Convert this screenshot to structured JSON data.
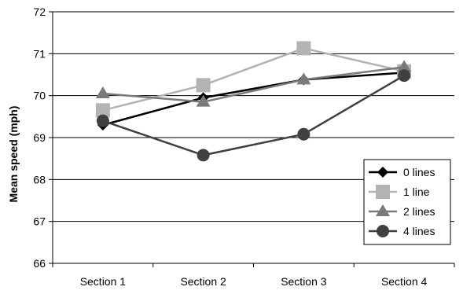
{
  "chart_data": {
    "type": "line",
    "title": "",
    "xlabel": "",
    "ylabel": "Mean speed (mph)",
    "categories": [
      "Section 1",
      "Section 2",
      "Section 3",
      "Section 4"
    ],
    "ylim": [
      66,
      72
    ],
    "yticks": [
      66,
      67,
      68,
      69,
      70,
      71,
      72
    ],
    "grid": "horizontal",
    "legend_position": "bottom-right",
    "series": [
      {
        "name": "0 lines",
        "marker": "diamond",
        "color": "#000000",
        "values": [
          69.3,
          69.95,
          70.38,
          70.55
        ]
      },
      {
        "name": "1 line",
        "marker": "square",
        "color": "#b3b3b3",
        "values": [
          69.65,
          70.25,
          71.13,
          70.58
        ]
      },
      {
        "name": "2 lines",
        "marker": "triangle",
        "color": "#7a7a7a",
        "values": [
          70.05,
          69.85,
          70.38,
          70.68
        ]
      },
      {
        "name": "4 lines",
        "marker": "circle",
        "color": "#404040",
        "values": [
          69.4,
          68.58,
          69.08,
          70.48
        ]
      }
    ]
  }
}
